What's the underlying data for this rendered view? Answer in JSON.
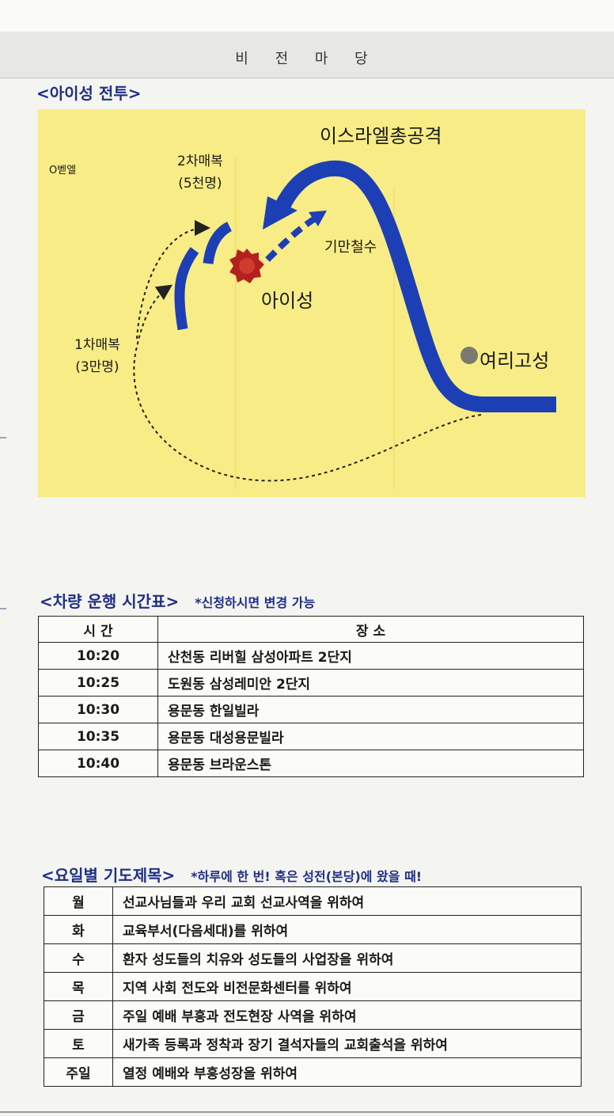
{
  "header": {
    "title": "비 전 마 당"
  },
  "battle": {
    "title": "<아이성 전투>",
    "labels": {
      "bethel": "O벧엘",
      "ambush2_line1": "2차매복",
      "ambush2_line2": "(5천명)",
      "israel_attack": "이스라엘총공격",
      "feint_retreat": "기만철수",
      "ai_city": "아이성",
      "ambush1_line1": "1차매복",
      "ambush1_line2": "(3만명)",
      "jericho": "여리고성"
    },
    "colors": {
      "background": "#f8ec86",
      "arrow": "#1d3fb5",
      "city": "#b32020",
      "jericho": "#7a7a70"
    }
  },
  "schedule": {
    "title": "<차량 운행 시간표>",
    "note": "*신청하시면 변경 가능",
    "headers": [
      "시 간",
      "장 소"
    ],
    "rows": [
      {
        "time": "10:20",
        "place": "산천동 리버힐 삼성아파트 2단지"
      },
      {
        "time": "10:25",
        "place": "도원동 삼성레미안 2단지"
      },
      {
        "time": "10:30",
        "place": "용문동 한일빌라"
      },
      {
        "time": "10:35",
        "place": "용문동 대성용문빌라"
      },
      {
        "time": "10:40",
        "place": "용문동 브라운스톤"
      }
    ]
  },
  "prayer": {
    "title": "<요일별 기도제목>",
    "note": "*하루에 한 번! 혹은 성전(본당)에 왔을 때!",
    "rows": [
      {
        "day": "월",
        "text": "선교사님들과 우리 교회 선교사역을 위하여"
      },
      {
        "day": "화",
        "text": "교육부서(다음세대)를 위하여"
      },
      {
        "day": "수",
        "text": "환자 성도들의 치유와 성도들의 사업장을 위하여"
      },
      {
        "day": "목",
        "text": "지역 사회 전도와 비전문화센터를 위하여"
      },
      {
        "day": "금",
        "text": "주일 예배 부흥과 전도현장 사역을 위하여"
      },
      {
        "day": "토",
        "text": "새가족 등록과 정착과 장기 결석자들의 교회출석을 위하여"
      },
      {
        "day": "주일",
        "text": "열정 예배와 부흥성장을 위하여"
      }
    ]
  }
}
